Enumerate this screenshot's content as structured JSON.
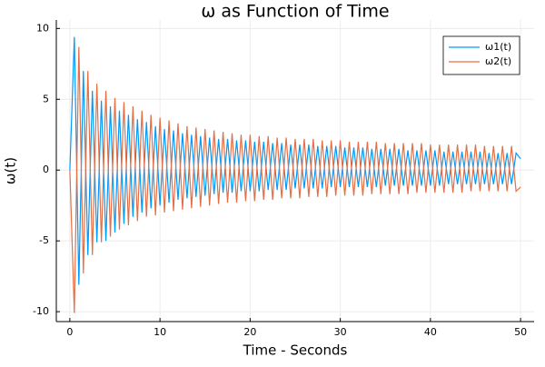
{
  "chart_data": {
    "type": "line",
    "title": "ω as Function of Time",
    "x_label": "Time - Seconds",
    "y_label": "ω(t)",
    "xlim": [
      -1.5,
      51.5
    ],
    "ylim": [
      -10.7,
      10.6
    ],
    "xticks": [
      0,
      10,
      20,
      30,
      40,
      50
    ],
    "yticks": [
      -10,
      -5,
      0,
      5,
      10
    ],
    "grid": true,
    "legend": "top-right",
    "x": [
      0,
      0.5,
      1,
      1.5,
      2,
      2.5,
      3,
      3.5,
      4,
      4.5,
      5,
      5.5,
      6,
      6.5,
      7,
      7.5,
      8,
      8.5,
      9,
      9.5,
      10,
      10.5,
      11,
      11.5,
      12,
      12.5,
      13,
      13.5,
      14,
      14.5,
      15,
      15.5,
      16,
      16.5,
      17,
      17.5,
      18,
      18.5,
      19,
      19.5,
      20,
      20.5,
      21,
      21.5,
      22,
      22.5,
      23,
      23.5,
      24,
      24.5,
      25,
      25.5,
      26,
      26.5,
      27,
      27.5,
      28,
      28.5,
      29,
      29.5,
      30,
      30.5,
      31,
      31.5,
      32,
      32.5,
      33,
      33.5,
      34,
      34.5,
      35,
      35.5,
      36,
      36.5,
      37,
      37.5,
      38,
      38.5,
      39,
      39.5,
      40,
      40.5,
      41,
      41.5,
      42,
      42.5,
      43,
      43.5,
      44,
      44.5,
      45,
      45.5,
      46,
      46.5,
      47,
      47.5,
      48,
      48.5,
      49,
      49.5,
      50
    ],
    "series": [
      {
        "name": "ω1(t)",
        "color": "#009afa",
        "values": [
          0,
          9.4,
          -8.1,
          7.0,
          -6.0,
          5.6,
          -5.1,
          4.9,
          -5.0,
          4.5,
          -4.4,
          4.2,
          -3.8,
          3.9,
          -3.3,
          3.6,
          -3.0,
          3.4,
          -2.7,
          3.1,
          -2.5,
          2.9,
          -2.3,
          2.8,
          -2.1,
          2.6,
          -2.0,
          2.5,
          -1.9,
          2.4,
          -1.8,
          2.3,
          -1.7,
          2.2,
          -1.6,
          2.2,
          -1.6,
          2.1,
          -1.5,
          2.1,
          -1.5,
          2.0,
          -1.5,
          2.0,
          -1.4,
          1.9,
          -1.4,
          1.9,
          -1.4,
          1.8,
          -1.3,
          1.8,
          -1.3,
          1.8,
          -1.3,
          1.7,
          -1.3,
          1.7,
          -1.2,
          1.7,
          -1.2,
          1.6,
          -1.2,
          1.6,
          -1.2,
          1.6,
          -1.2,
          1.5,
          -1.2,
          1.5,
          -1.1,
          1.5,
          -1.1,
          1.5,
          -1.1,
          1.4,
          -1.1,
          1.4,
          -1.1,
          1.4,
          -1.1,
          1.4,
          -1.1,
          1.3,
          -1.0,
          1.3,
          -1.0,
          1.3,
          -1.0,
          1.3,
          -1.0,
          1.3,
          -1.0,
          1.2,
          -1.0,
          1.2,
          -1.0,
          1.2,
          -1.0,
          1.2,
          0.8
        ]
      },
      {
        "name": "ω2(t)",
        "color": "#e36f47",
        "values": [
          0,
          -10.1,
          8.7,
          -7.3,
          7.0,
          -6.0,
          6.1,
          -5.1,
          5.6,
          -4.7,
          5.1,
          -4.2,
          4.8,
          -3.9,
          4.5,
          -3.6,
          4.2,
          -3.3,
          3.9,
          -3.2,
          3.7,
          -3.0,
          3.5,
          -2.9,
          3.3,
          -2.8,
          3.1,
          -2.7,
          3.0,
          -2.6,
          2.9,
          -2.5,
          2.8,
          -2.4,
          2.7,
          -2.3,
          2.6,
          -2.3,
          2.5,
          -2.2,
          2.5,
          -2.2,
          2.4,
          -2.1,
          2.4,
          -2.1,
          2.3,
          -2.0,
          2.3,
          -2.0,
          2.2,
          -2.0,
          2.2,
          -1.9,
          2.2,
          -1.9,
          2.1,
          -1.9,
          2.1,
          -1.8,
          2.1,
          -1.8,
          2.0,
          -1.8,
          2.0,
          -1.8,
          2.0,
          -1.7,
          2.0,
          -1.7,
          1.9,
          -1.7,
          1.9,
          -1.7,
          1.9,
          -1.7,
          1.9,
          -1.6,
          1.9,
          -1.6,
          1.8,
          -1.6,
          1.8,
          -1.6,
          1.8,
          -1.6,
          1.8,
          -1.6,
          1.8,
          -1.5,
          1.8,
          -1.5,
          1.7,
          -1.5,
          1.7,
          -1.5,
          1.7,
          -1.5,
          1.7,
          -1.5,
          -1.2
        ]
      }
    ]
  }
}
